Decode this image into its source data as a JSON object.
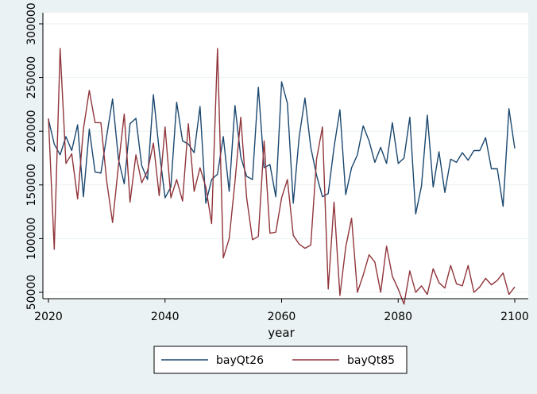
{
  "chart_data": {
    "type": "line",
    "title": "",
    "xlabel": "year",
    "ylabel": "",
    "xlim": [
      2020,
      2100
    ],
    "ylim": [
      50000,
      300000
    ],
    "x_ticks": [
      2020,
      2040,
      2060,
      2080,
      2100
    ],
    "y_ticks": [
      50000,
      100000,
      150000,
      200000,
      250000,
      300000
    ],
    "grid": "horizontal",
    "legend_position": "bottom",
    "series": [
      {
        "name": "bayQt26",
        "color": "#1a476f",
        "x": [
          2020,
          2021,
          2022,
          2023,
          2024,
          2025,
          2026,
          2027,
          2028,
          2029,
          2030,
          2031,
          2032,
          2033,
          2034,
          2035,
          2036,
          2037,
          2038,
          2039,
          2040,
          2041,
          2042,
          2043,
          2044,
          2045,
          2046,
          2047,
          2048,
          2049,
          2050,
          2051,
          2052,
          2053,
          2054,
          2055,
          2056,
          2057,
          2058,
          2059,
          2060,
          2061,
          2062,
          2063,
          2064,
          2065,
          2066,
          2067,
          2068,
          2069,
          2070,
          2071,
          2072,
          2073,
          2074,
          2075,
          2076,
          2077,
          2078,
          2079,
          2080,
          2081,
          2082,
          2083,
          2084,
          2085,
          2086,
          2087,
          2088,
          2089,
          2090,
          2091,
          2092,
          2093,
          2094,
          2095,
          2096,
          2097,
          2098,
          2099,
          2100
        ],
        "y": [
          211000,
          188000,
          178000,
          195000,
          182000,
          206000,
          139000,
          202000,
          162000,
          161000,
          196000,
          230000,
          174000,
          151000,
          207000,
          212000,
          168000,
          155000,
          234000,
          182000,
          138000,
          148000,
          227000,
          191000,
          188000,
          180000,
          223000,
          133000,
          155000,
          160000,
          195000,
          144000,
          224000,
          176000,
          158000,
          155000,
          241000,
          166000,
          169000,
          139000,
          246000,
          226000,
          133000,
          194000,
          231000,
          185000,
          159000,
          139000,
          142000,
          185000,
          220000,
          141000,
          166000,
          178000,
          205000,
          191000,
          171000,
          185000,
          170000,
          208000,
          170000,
          175000,
          213000,
          123000,
          149000,
          215000,
          148000,
          181000,
          143000,
          174000,
          171000,
          180000,
          173000,
          182000,
          182000,
          194000,
          165000,
          165000,
          130000,
          221000,
          184000
        ]
      },
      {
        "name": "bayQt85",
        "color": "#90353b",
        "x": [
          2020,
          2021,
          2022,
          2023,
          2024,
          2025,
          2026,
          2027,
          2028,
          2029,
          2030,
          2031,
          2032,
          2033,
          2034,
          2035,
          2036,
          2037,
          2038,
          2039,
          2040,
          2041,
          2042,
          2043,
          2044,
          2045,
          2046,
          2047,
          2048,
          2049,
          2050,
          2051,
          2052,
          2053,
          2054,
          2055,
          2056,
          2057,
          2058,
          2059,
          2060,
          2061,
          2062,
          2063,
          2064,
          2065,
          2066,
          2067,
          2068,
          2069,
          2070,
          2071,
          2072,
          2073,
          2074,
          2075,
          2076,
          2077,
          2078,
          2079,
          2080,
          2081,
          2082,
          2083,
          2084,
          2085,
          2086,
          2087,
          2088,
          2089,
          2090,
          2091,
          2092,
          2093,
          2094,
          2095,
          2096,
          2097,
          2098,
          2099,
          2100
        ],
        "y": [
          212000,
          90000,
          277000,
          170000,
          179000,
          137000,
          202000,
          238000,
          208000,
          208000,
          153000,
          115000,
          168000,
          216000,
          134000,
          178000,
          152000,
          163000,
          189000,
          140000,
          204000,
          138000,
          155000,
          135000,
          207000,
          144000,
          166000,
          148000,
          114000,
          277000,
          82000,
          100000,
          153000,
          213000,
          138000,
          99000,
          102000,
          191000,
          105000,
          106000,
          138000,
          155000,
          103000,
          95000,
          91000,
          94000,
          174000,
          204000,
          53000,
          134000,
          47000,
          92000,
          119000,
          50000,
          66000,
          85000,
          78000,
          50000,
          93000,
          65000,
          53000,
          39000,
          70000,
          50000,
          56000,
          48000,
          72000,
          59000,
          54000,
          75000,
          58000,
          56000,
          75000,
          50000,
          55000,
          63000,
          57000,
          61000,
          68000,
          48000,
          55000
        ]
      }
    ]
  }
}
